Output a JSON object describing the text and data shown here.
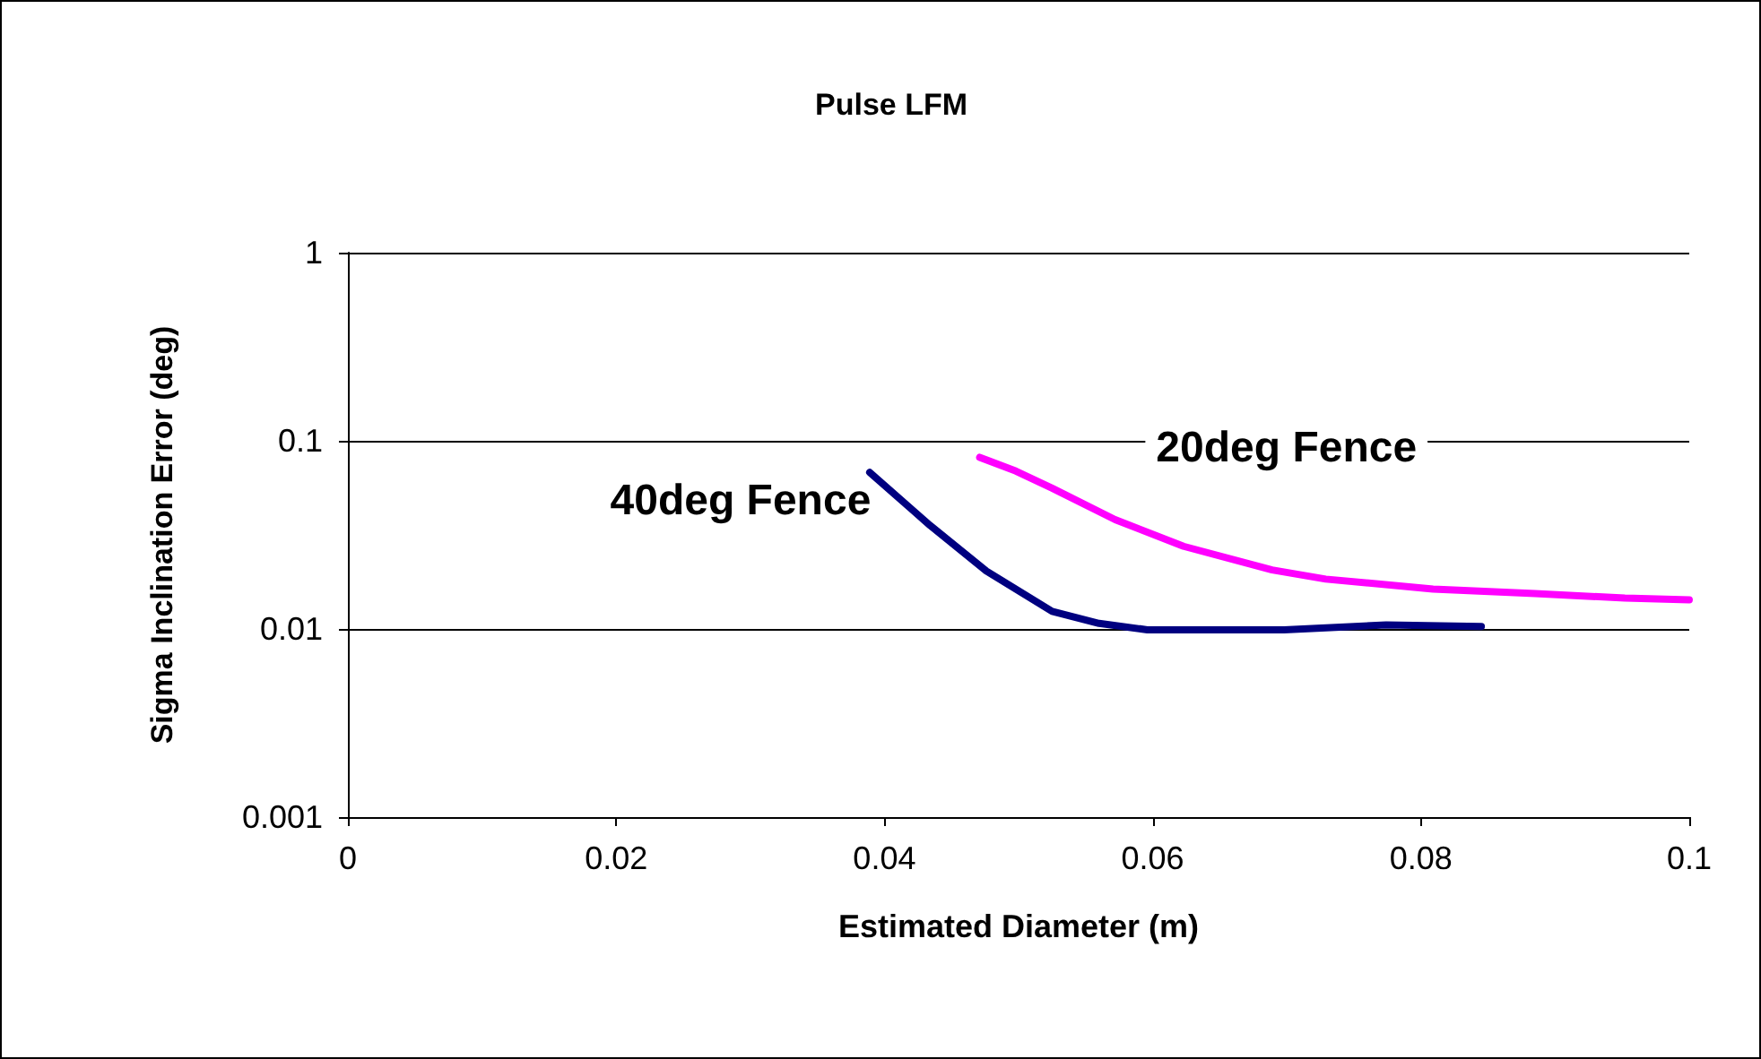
{
  "chart_data": {
    "type": "line",
    "title": "Pulse LFM",
    "xlabel": "Estimated Diameter (m)",
    "ylabel": "Sigma Inclination Error (deg)",
    "series": [
      {
        "name": "20deg Fence",
        "color": "#ff00ff",
        "x": [
          0.0471,
          0.0498,
          0.0525,
          0.0572,
          0.0623,
          0.0689,
          0.0729,
          0.0809,
          0.0885,
          0.0952,
          0.1
        ],
        "values": [
          0.0817,
          0.069,
          0.056,
          0.0381,
          0.0275,
          0.0206,
          0.0184,
          0.0163,
          0.0154,
          0.0146,
          0.0143
        ]
      },
      {
        "name": "40deg Fence",
        "color": "#000080",
        "x": [
          0.0389,
          0.0434,
          0.0476,
          0.0525,
          0.056,
          0.0596,
          0.0698,
          0.0774,
          0.0845
        ],
        "values": [
          0.068,
          0.0355,
          0.0203,
          0.0124,
          0.0107,
          0.0099,
          0.0099,
          0.0105,
          0.0103
        ]
      }
    ],
    "xlim": [
      0,
      0.1
    ],
    "xticks": [
      0,
      0.02,
      0.04,
      0.06,
      0.08,
      0.1
    ],
    "ylim": [
      0.001,
      1
    ],
    "yticks": [
      0.001,
      0.01,
      0.1,
      1
    ],
    "log": "y",
    "grid": "y",
    "legend": false,
    "marker": "none",
    "line_style": "solid"
  }
}
